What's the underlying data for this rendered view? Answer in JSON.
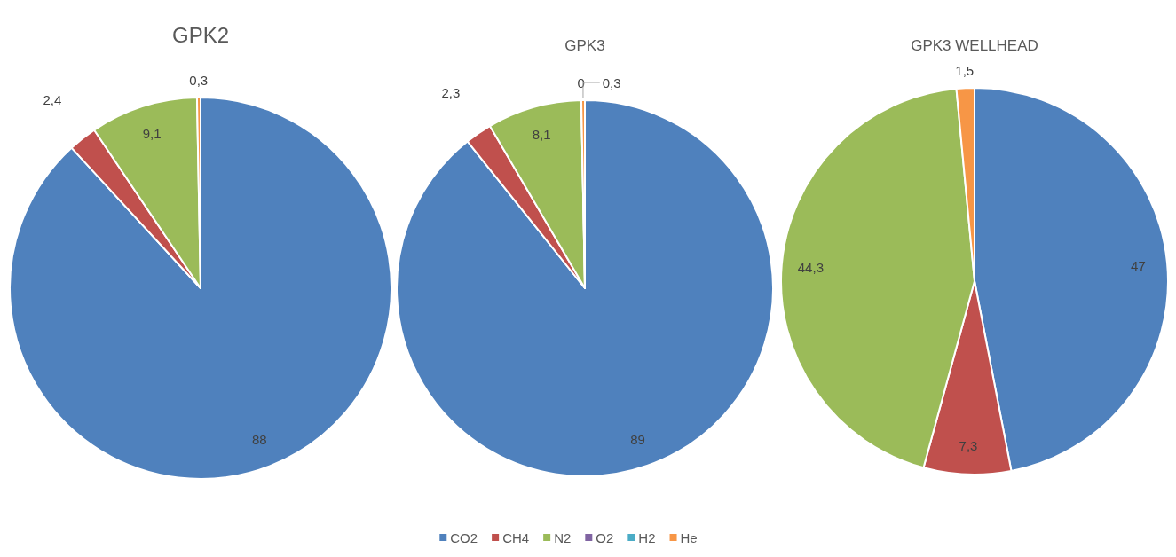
{
  "chart_data": {
    "type": "pie",
    "categories": [
      "CO2",
      "CH4",
      "N2",
      "O2",
      "H2",
      "He"
    ],
    "colors": [
      "#4f81bd",
      "#c0504d",
      "#9bbb59",
      "#8064a2",
      "#4bacc6",
      "#f79646"
    ],
    "legend": "bottom",
    "series": [
      {
        "name": "GPK2",
        "values": [
          88,
          2.4,
          9.1,
          null,
          null,
          0.3
        ],
        "value_labels": [
          "88",
          "2,4",
          "9,1",
          null,
          null,
          "0,3"
        ]
      },
      {
        "name": "GPK3",
        "values": [
          89,
          2.3,
          8.1,
          0,
          null,
          0.3
        ],
        "value_labels": [
          "89",
          "2,3",
          "8,1",
          "0",
          null,
          "0,3"
        ]
      },
      {
        "name": "GPK3 WELLHEAD",
        "values": [
          47,
          7.3,
          44.3,
          null,
          null,
          1.5
        ],
        "value_labels": [
          "47",
          "7,3",
          "44,3",
          null,
          null,
          "1,5"
        ]
      }
    ]
  }
}
